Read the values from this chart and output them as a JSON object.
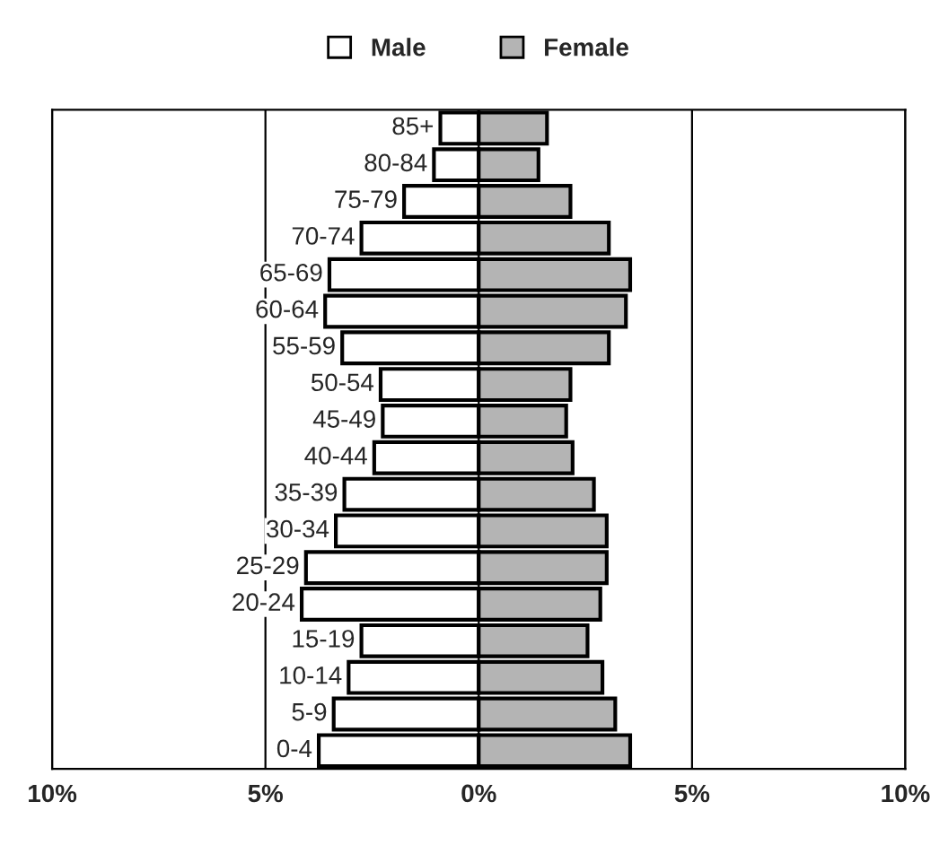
{
  "chart_data": {
    "type": "bar",
    "orientation": "horizontal",
    "categories": [
      "85+",
      "80-84",
      "75-79",
      "70-74",
      "65-69",
      "60-64",
      "55-59",
      "50-54",
      "45-49",
      "40-44",
      "35-39",
      "30-34",
      "25-29",
      "20-24",
      "15-19",
      "10-14",
      "5-9",
      "0-4"
    ],
    "series": [
      {
        "name": "Male",
        "color": "#ffffff",
        "values": [
          -0.9,
          -1.05,
          -1.75,
          -2.75,
          -3.5,
          -3.6,
          -3.2,
          -2.3,
          -2.25,
          -2.45,
          -3.15,
          -3.35,
          -4.05,
          -4.15,
          -2.75,
          -3.05,
          -3.4,
          -3.75
        ]
      },
      {
        "name": "Female",
        "color": "#b4b4b4",
        "values": [
          1.6,
          1.4,
          2.15,
          3.05,
          3.55,
          3.45,
          3.05,
          2.15,
          2.05,
          2.2,
          2.7,
          3.0,
          3.0,
          2.85,
          2.55,
          2.9,
          3.2,
          3.55
        ]
      }
    ],
    "xlim": [
      -10,
      10
    ],
    "xticks": [
      {
        "value": -10,
        "label": "10%"
      },
      {
        "value": -5,
        "label": "5%"
      },
      {
        "value": 0,
        "label": "0%"
      },
      {
        "value": 5,
        "label": "5%"
      },
      {
        "value": 10,
        "label": "10%"
      }
    ],
    "grid": "x",
    "legend": "top",
    "stacked": true
  }
}
